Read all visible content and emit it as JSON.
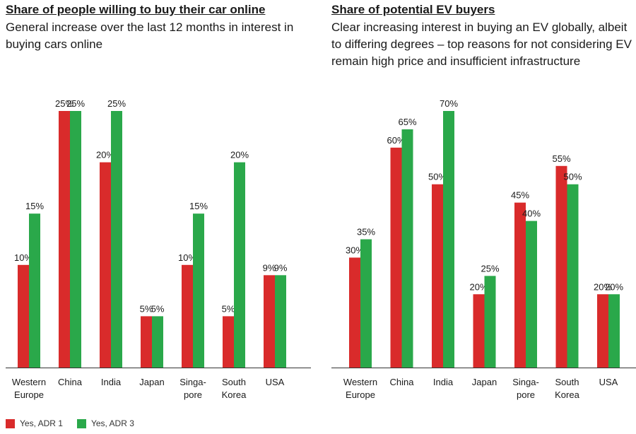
{
  "colors": {
    "adr1": "#d92b2b",
    "adr3": "#2aa84a",
    "axis": "#333333",
    "text": "#1a1a1a"
  },
  "legend": {
    "items": [
      {
        "label": "Yes, ADR 1"
      },
      {
        "label": "Yes, ADR 3"
      }
    ]
  },
  "chart_data": [
    {
      "type": "bar",
      "title": "Share of people willing to buy their car online",
      "subtitle": "General increase over the last 12 months in interest in buying cars online",
      "xlabel": "",
      "ylabel": "",
      "ylim": [
        0,
        25
      ],
      "grid": false,
      "legend_position": "bottom-left",
      "categories": [
        [
          "Western",
          "Europe"
        ],
        [
          "China"
        ],
        [
          "India"
        ],
        [
          "Japan"
        ],
        [
          "Singa-",
          "pore"
        ],
        [
          "South",
          "Korea"
        ],
        [
          "USA"
        ]
      ],
      "series": [
        {
          "name": "Yes, ADR 1",
          "values": [
            10,
            25,
            20,
            5,
            10,
            5,
            9
          ],
          "labels": [
            "10%",
            "25%",
            "20%",
            "5%",
            "10%",
            "5%",
            "9%"
          ]
        },
        {
          "name": "Yes, ADR 3",
          "values": [
            15,
            25,
            25,
            5,
            15,
            20,
            9
          ],
          "labels": [
            "15%",
            "25%",
            "25%",
            "5%",
            "15%",
            "20%",
            "9%"
          ]
        }
      ]
    },
    {
      "type": "bar",
      "title": "Share of potential EV buyers",
      "subtitle": "Clear increasing interest in buying an EV globally, albeit to differing degrees – top reasons for not considering EV remain high price and insufficient infrastructure",
      "xlabel": "",
      "ylabel": "",
      "ylim": [
        0,
        70
      ],
      "grid": false,
      "categories": [
        [
          "Western",
          "Europe"
        ],
        [
          "China"
        ],
        [
          "India"
        ],
        [
          "Japan"
        ],
        [
          "Singa-",
          "pore"
        ],
        [
          "South",
          "Korea"
        ],
        [
          "USA"
        ]
      ],
      "series": [
        {
          "name": "Yes, ADR 1",
          "values": [
            30,
            60,
            50,
            20,
            45,
            55,
            20
          ],
          "labels": [
            "30%",
            "60%",
            "50%",
            "20%",
            "45%",
            "55%",
            "20%"
          ]
        },
        {
          "name": "Yes, ADR 3",
          "values": [
            35,
            65,
            70,
            25,
            40,
            50,
            20
          ],
          "labels": [
            "35%",
            "65%",
            "70%",
            "25%",
            "40%",
            "50%",
            "20%"
          ]
        }
      ]
    }
  ]
}
